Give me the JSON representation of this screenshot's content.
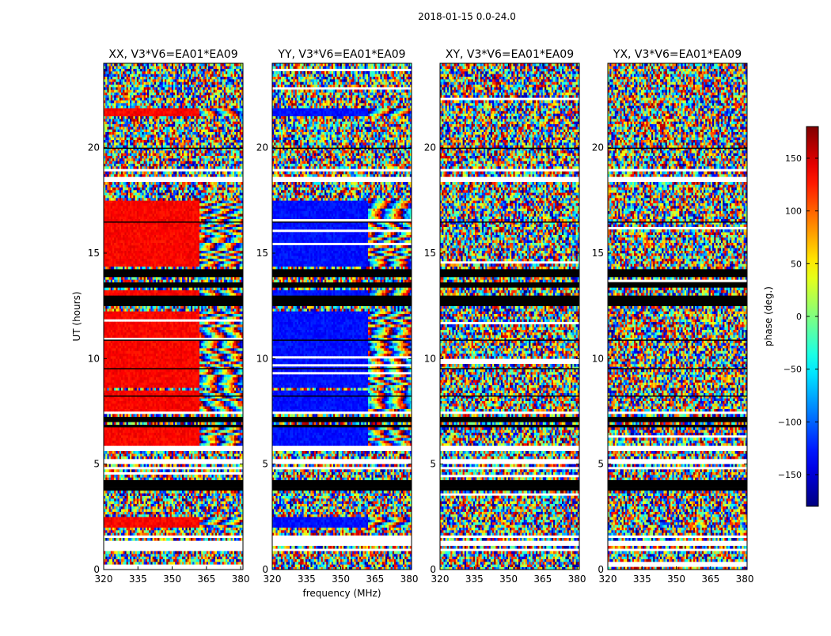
{
  "figure": {
    "suptitle": "2018-01-15 0.0-24.0"
  },
  "chart_data": {
    "type": "heatmap",
    "shared": {
      "xlabel": "frequency (MHz)",
      "ylabel": "UT (hours)",
      "xlim": [
        320,
        381
      ],
      "ylim": [
        0,
        24
      ],
      "xticks": [
        320,
        335,
        350,
        365,
        380
      ],
      "yticks": [
        0,
        5,
        10,
        15,
        20
      ]
    },
    "panels": [
      {
        "title": "XX, V3*V6=EA01*EA09",
        "product": "XX",
        "coherent_phase_deg": 135
      },
      {
        "title": "YY, V3*V6=EA01*EA09",
        "product": "YY",
        "coherent_phase_deg": -130
      },
      {
        "title": "XY, V3*V6=EA01*EA09",
        "product": "XY",
        "coherent_phase_deg": null
      },
      {
        "title": "YX, V3*V6=EA01*EA09",
        "product": "YX",
        "coherent_phase_deg": null
      }
    ],
    "colorbar": {
      "label": "phase (deg.)",
      "range": [
        -180,
        180
      ],
      "ticks": [
        150,
        100,
        50,
        0,
        -50,
        -100,
        -150
      ],
      "tick_labels": [
        "150",
        "100",
        "50",
        "0",
        "−50",
        "−100",
        "−150"
      ],
      "colormap": "jet"
    },
    "flagged_ut_ranges_white": [
      [
        0.82,
        1.05
      ],
      [
        1.1,
        1.25
      ],
      [
        1.3,
        1.4
      ],
      [
        1.45,
        1.6
      ],
      [
        4.72,
        4.85
      ],
      [
        5.05,
        5.2
      ],
      [
        5.62,
        5.9
      ],
      [
        7.42,
        7.55
      ],
      [
        18.4,
        18.6
      ],
      [
        18.85,
        18.95
      ],
      [
        19.0,
        19.05
      ]
    ],
    "flagged_ut_ranges_black": [
      [
        3.8,
        4.25
      ],
      [
        6.72,
        6.85
      ],
      [
        6.95,
        7.3
      ],
      [
        12.5,
        12.95
      ],
      [
        13.35,
        13.6
      ],
      [
        13.9,
        14.3
      ]
    ],
    "coherent_ut_segments": [
      [
        2.05,
        2.55
      ],
      [
        5.9,
        6.75
      ],
      [
        7.55,
        8.55
      ],
      [
        8.6,
        12.3
      ],
      [
        13.0,
        13.3
      ],
      [
        14.4,
        17.55
      ],
      [
        21.5,
        21.85
      ]
    ]
  }
}
